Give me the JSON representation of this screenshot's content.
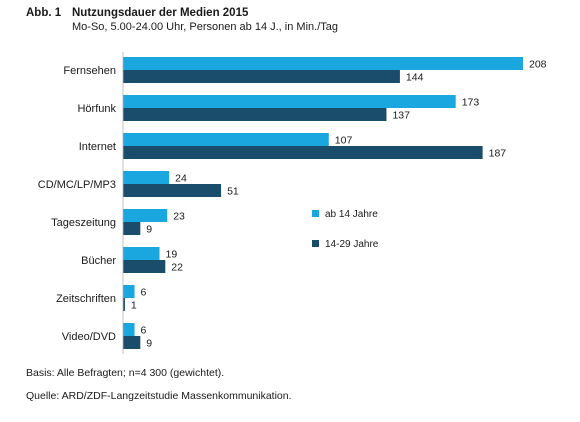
{
  "figure": {
    "number": "Abb. 1",
    "title": "Nutzungsdauer der Medien 2015",
    "subtitle": "Mo-So, 5.00-24.00 Uhr, Personen ab 14 J., in Min./Tag"
  },
  "chart_data": {
    "type": "bar",
    "orientation": "horizontal",
    "categories": [
      "Fernsehen",
      "Hörfunk",
      "Internet",
      "CD/MC/LP/MP3",
      "Tageszeitung",
      "Bücher",
      "Zeitschriften",
      "Video/DVD"
    ],
    "series": [
      {
        "name": "ab 14 Jahre",
        "color": "#1aa7e0",
        "values": [
          208,
          173,
          107,
          24,
          23,
          19,
          6,
          6
        ],
        "labels": [
          "208",
          "173",
          "107",
          "24",
          "23",
          "19",
          "6",
          "6"
        ]
      },
      {
        "name": "14-29 Jahre",
        "color": "#1a4c6b",
        "values": [
          144,
          137,
          187,
          51,
          9,
          22,
          1,
          9
        ],
        "labels": [
          "144",
          "137",
          "187",
          "51",
          "9",
          "22",
          "1",
          "9"
        ]
      }
    ],
    "xlim": [
      0,
      208
    ],
    "grid": false,
    "legend_position": "middle-right"
  },
  "footer": {
    "basis": "Basis: Alle Befragten; n=4 300 (gewichtet).",
    "source": "Quelle: ARD/ZDF-Langzeitstudie Massenkommunikation."
  }
}
